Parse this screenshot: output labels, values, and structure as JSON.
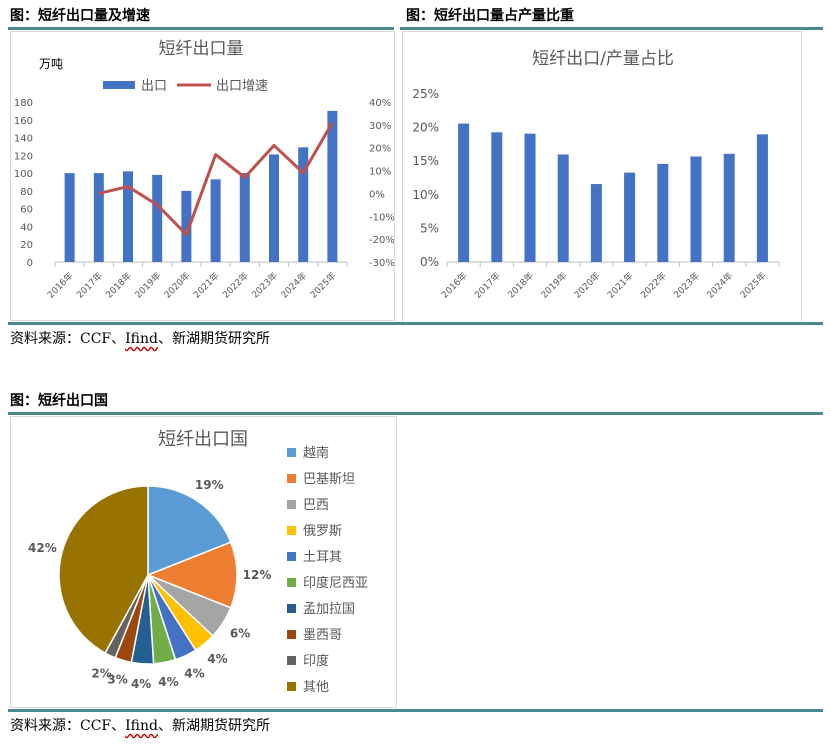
{
  "figures": {
    "fig1_caption": "图：短纤出口量及增速",
    "fig2_caption": "图：短纤出口量占产量比重",
    "fig3_caption": "图：短纤出口国"
  },
  "source": {
    "prefix": "资料来源：CCF、",
    "ifind": "Ifind",
    "suffix": "、新湖期货研究所"
  },
  "colors": {
    "bar": "#4472c4",
    "line": "#c0504d",
    "rule": "#4a8a8c"
  },
  "chart_data": [
    {
      "type": "bar",
      "title": "短纤出口量",
      "unit_label": "万吨",
      "categories": [
        "2016年",
        "2017年",
        "2018年",
        "2019年",
        "2020年",
        "2021年",
        "2022年",
        "2023年",
        "2024年",
        "2025年"
      ],
      "ylim": [
        0,
        180
      ],
      "yticks": [
        "0",
        "20",
        "40",
        "60",
        "80",
        "100",
        "120",
        "140",
        "160",
        "180"
      ],
      "y2lim": [
        -30,
        40
      ],
      "y2ticks": [
        "-30%",
        "-20%",
        "-10%",
        "0%",
        "10%",
        "20%",
        "30%",
        "40%"
      ],
      "legend": [
        "出口",
        "出口增速"
      ],
      "series": [
        {
          "name": "出口",
          "type": "bar",
          "axis": "left",
          "values": [
            100,
            100,
            102,
            98,
            80,
            93,
            100,
            121,
            129,
            170
          ]
        },
        {
          "name": "出口增速",
          "type": "line",
          "axis": "right",
          "values": [
            null,
            0,
            3,
            -5,
            -18,
            17,
            7,
            21,
            9,
            31
          ]
        }
      ]
    },
    {
      "type": "bar",
      "title": "短纤出口/产量占比",
      "categories": [
        "2016年",
        "2017年",
        "2018年",
        "2019年",
        "2020年",
        "2021年",
        "2022年",
        "2023年",
        "2024年",
        "2025年"
      ],
      "ylim": [
        0,
        25
      ],
      "yticks": [
        "0%",
        "5%",
        "10%",
        "15%",
        "20%",
        "25%"
      ],
      "values": [
        20.6,
        19.3,
        19.1,
        16.0,
        11.6,
        13.3,
        14.6,
        15.7,
        16.1,
        19.0
      ]
    },
    {
      "type": "pie",
      "title": "短纤出口国",
      "slices": [
        {
          "label": "越南",
          "value": 19,
          "text": "19%",
          "color": "#5b9bd5"
        },
        {
          "label": "巴基斯坦",
          "value": 12,
          "text": "12%",
          "color": "#ed7d31"
        },
        {
          "label": "巴西",
          "value": 6,
          "text": "6%",
          "color": "#a5a5a5"
        },
        {
          "label": "俄罗斯",
          "value": 4,
          "text": "4%",
          "color": "#ffc000"
        },
        {
          "label": "土耳其",
          "value": 4,
          "text": "4%",
          "color": "#4472c4"
        },
        {
          "label": "印度尼西亚",
          "value": 4,
          "text": "4%",
          "color": "#70ad47"
        },
        {
          "label": "孟加拉国",
          "value": 4,
          "text": "4%",
          "color": "#255e91"
        },
        {
          "label": "墨西哥",
          "value": 3,
          "text": "3%",
          "color": "#9e480e"
        },
        {
          "label": "印度",
          "value": 2,
          "text": "2%",
          "color": "#636363"
        },
        {
          "label": "其他",
          "value": 42,
          "text": "42%",
          "color": "#997300"
        }
      ]
    }
  ]
}
